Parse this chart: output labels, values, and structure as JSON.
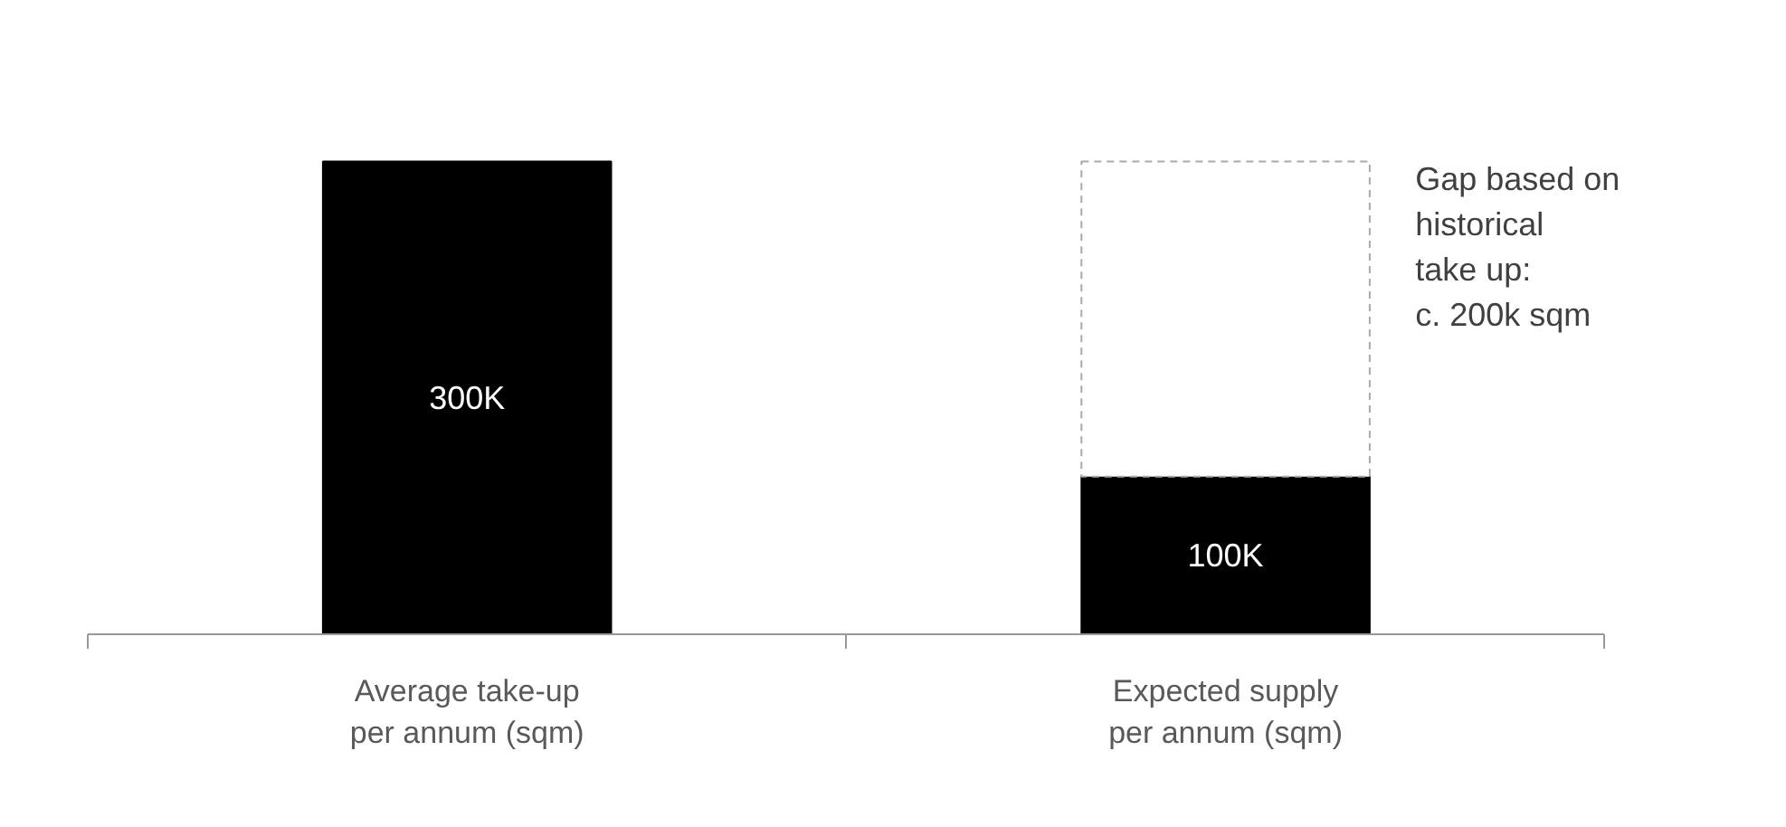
{
  "chart_data": {
    "type": "bar",
    "stacked": true,
    "categories": [
      "Average take-up\nper annum (sqm)",
      "Expected supply\nper annum (sqm)"
    ],
    "series": [
      {
        "color": "#000000",
        "values": [
          300,
          100
        ],
        "value_labels": [
          "300K",
          "100K"
        ]
      },
      {
        "color": "#ffffff",
        "line_style": "dashed",
        "values": [
          null,
          200
        ]
      }
    ],
    "annotations": [
      "Gap based on\nhistorical\ntake up:\nc. 200k sqm"
    ],
    "grid": false
  }
}
